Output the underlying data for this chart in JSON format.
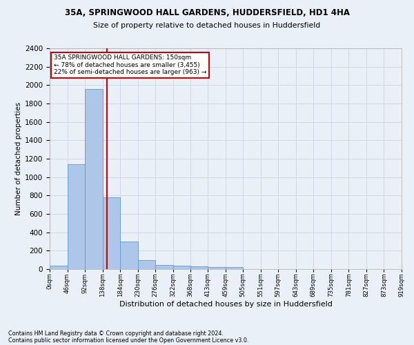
{
  "title_line1": "35A, SPRINGWOOD HALL GARDENS, HUDDERSFIELD, HD1 4HA",
  "title_line2": "Size of property relative to detached houses in Huddersfield",
  "xlabel": "Distribution of detached houses by size in Huddersfield",
  "ylabel": "Number of detached properties",
  "footnote1": "Contains HM Land Registry data © Crown copyright and database right 2024.",
  "footnote2": "Contains public sector information licensed under the Open Government Licence v3.0.",
  "bar_edges": [
    0,
    46,
    92,
    138,
    184,
    230,
    276,
    322,
    368,
    413,
    459,
    505,
    551,
    597,
    643,
    689,
    735,
    781,
    827,
    873,
    919
  ],
  "bar_heights": [
    35,
    1140,
    1960,
    780,
    300,
    100,
    47,
    40,
    30,
    20,
    20,
    0,
    0,
    0,
    0,
    0,
    0,
    0,
    0,
    0
  ],
  "bar_color": "#aec6e8",
  "bar_edgecolor": "#5b9bd5",
  "grid_color": "#d0d8e8",
  "bg_color": "#eaf0f8",
  "property_size": 150,
  "vline_color": "#cc0000",
  "annotation_text": "35A SPRINGWOOD HALL GARDENS: 150sqm\n← 78% of detached houses are smaller (3,455)\n22% of semi-detached houses are larger (963) →",
  "annotation_box_color": "#ffffff",
  "annotation_box_edgecolor": "#cc0000",
  "ylim": [
    0,
    2400
  ],
  "xlim": [
    0,
    919
  ],
  "yticks": [
    0,
    200,
    400,
    600,
    800,
    1000,
    1200,
    1400,
    1600,
    1800,
    2000,
    2200,
    2400
  ],
  "tick_labels": [
    "0sqm",
    "46sqm",
    "92sqm",
    "138sqm",
    "184sqm",
    "230sqm",
    "276sqm",
    "322sqm",
    "368sqm",
    "413sqm",
    "459sqm",
    "505sqm",
    "551sqm",
    "597sqm",
    "643sqm",
    "689sqm",
    "735sqm",
    "781sqm",
    "827sqm",
    "873sqm",
    "919sqm"
  ]
}
